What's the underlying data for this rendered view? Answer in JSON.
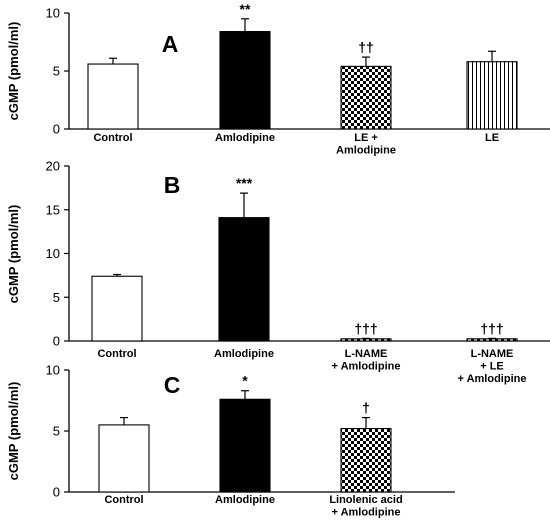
{
  "colors": {
    "axis": "#000000",
    "black_bar": "#000000",
    "white_bar": "#ffffff"
  },
  "chart_data": [
    {
      "type": "bar",
      "panel_label": "A",
      "ylabel": "cGMP (pmol/ml)",
      "ylim": [
        0,
        10
      ],
      "yticks": [
        0,
        5,
        10
      ],
      "categories": [
        [
          "Control"
        ],
        [
          "Amlodipine"
        ],
        [
          "LE +",
          "Amlodipine"
        ],
        [
          "LE"
        ]
      ],
      "values": [
        5.6,
        8.4,
        5.4,
        5.8
      ],
      "errors": [
        0.5,
        1.1,
        0.8,
        0.9
      ],
      "fills": [
        "white",
        "black",
        "checker",
        "vstripes"
      ],
      "significance": [
        "",
        "**",
        "††",
        ""
      ]
    },
    {
      "type": "bar",
      "panel_label": "B",
      "ylabel": "cGMP (pmol/ml)",
      "ylim": [
        0,
        20
      ],
      "yticks": [
        0,
        5,
        10,
        15,
        20
      ],
      "categories": [
        [
          "Control"
        ],
        [
          "Amlodipine"
        ],
        [
          "L-NAME",
          "+ Amlodipine"
        ],
        [
          "L-NAME",
          "+ LE",
          "+ Amlodipine"
        ]
      ],
      "values": [
        7.4,
        14.1,
        0.25,
        0.25
      ],
      "errors": [
        0.2,
        2.8,
        0.05,
        0.05
      ],
      "fills": [
        "white",
        "black",
        "checker",
        "checker"
      ],
      "significance": [
        "",
        "***",
        "†††",
        "†††"
      ]
    },
    {
      "type": "bar",
      "panel_label": "C",
      "ylabel": "cGMP (pmol/ml)",
      "ylim": [
        0,
        10
      ],
      "yticks": [
        0,
        5,
        10
      ],
      "categories": [
        [
          "Control"
        ],
        [
          "Amlodipine"
        ],
        [
          "Linolenic acid",
          "+ Amlodipine"
        ]
      ],
      "values": [
        5.5,
        7.6,
        5.2
      ],
      "errors": [
        0.6,
        0.7,
        0.9
      ],
      "fills": [
        "white",
        "black",
        "checker"
      ],
      "significance": [
        "",
        "*",
        "†"
      ]
    }
  ]
}
